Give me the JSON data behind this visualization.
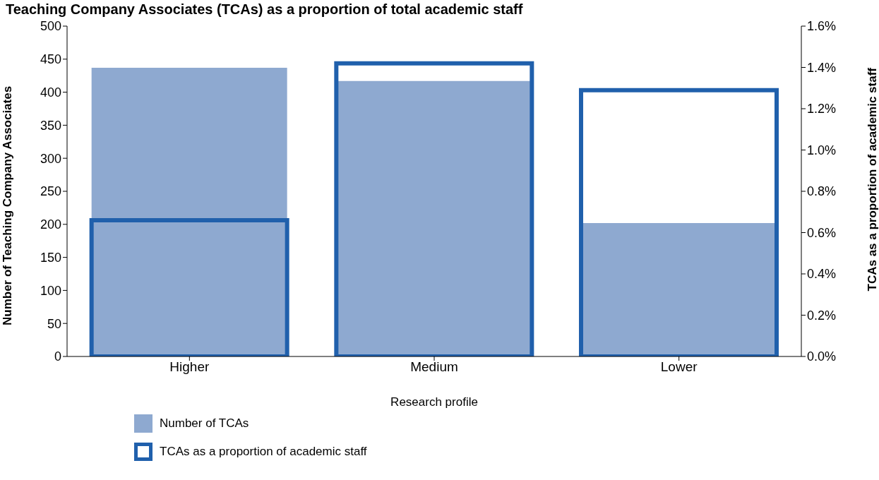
{
  "chart_data": {
    "type": "bar",
    "title": "Teaching Company Associates (TCAs) as a proportion of total academic staff",
    "xlabel": "Research profile",
    "ylabel": "Number of Teaching Company Associates",
    "y2label": "TCAs as a proportion of academic staff",
    "categories": [
      "Higher",
      "Medium",
      "Lower"
    ],
    "series": [
      {
        "name": "Number of TCAs",
        "color": "#8ea9d0",
        "values": [
          437,
          417,
          202
        ]
      },
      {
        "name": "TCAs as a proportion of academic staff",
        "color": "#2060ac",
        "values": [
          0.66,
          1.42,
          1.29
        ],
        "axis": "y2"
      }
    ],
    "ylim": [
      0,
      500
    ],
    "yticks": [
      0,
      50,
      100,
      150,
      200,
      250,
      300,
      350,
      400,
      450,
      500
    ],
    "y2lim": [
      0,
      1.6
    ],
    "y2ticks": [
      {
        "value": 0,
        "label": "0.0%"
      },
      {
        "value": 0.2,
        "label": "0.2%"
      },
      {
        "value": 0.4,
        "label": "0.4%"
      },
      {
        "value": 0.6,
        "label": "0.6%"
      },
      {
        "value": 0.8,
        "label": "0.8%"
      },
      {
        "value": 1,
        "label": "1.0%"
      },
      {
        "value": 1.2,
        "label": "1.2%"
      },
      {
        "value": 1.4,
        "label": "1.4%"
      },
      {
        "value": 1.6,
        "label": "1.6%"
      }
    ],
    "grid": false,
    "legend": "bottom left"
  }
}
